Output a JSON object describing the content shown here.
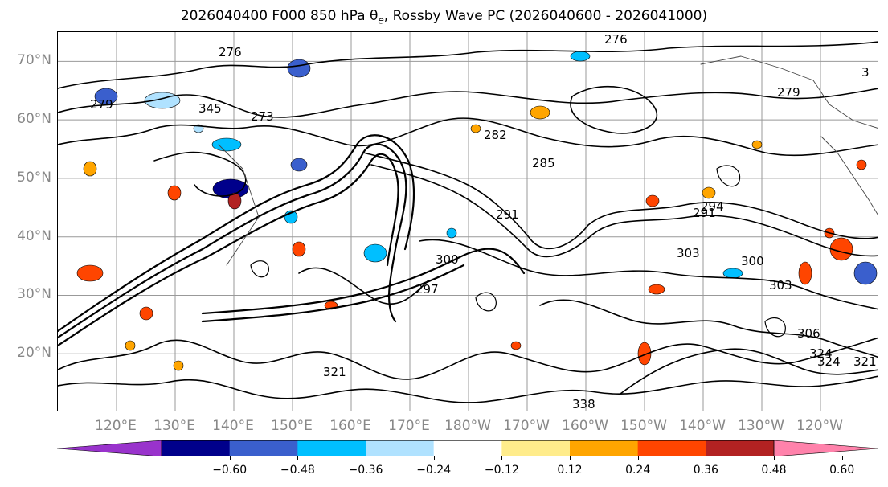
{
  "title": "2026040400 F000 850 hPa θe, Rossby Wave PC (2026040600 - 2026041000)",
  "title_parts": {
    "prefix": "2026040400 F000 850 hPa θ",
    "subscript": "e",
    "suffix": ", Rossby Wave PC (2026040600 - 2026041000)"
  },
  "map": {
    "projection": "cylindrical",
    "lon_range": [
      110,
      250
    ],
    "lat_range": [
      10,
      75
    ],
    "gridlines": true,
    "coastline_color": "#000000",
    "contour_color": "#000000"
  },
  "lat_labels": [
    "70°N",
    "60°N",
    "50°N",
    "40°N",
    "30°N",
    "20°N"
  ],
  "lat_values": [
    70,
    60,
    50,
    40,
    30,
    20
  ],
  "lon_labels": [
    "120°E",
    "130°E",
    "140°E",
    "150°E",
    "160°E",
    "170°E",
    "180°W",
    "170°W",
    "160°W",
    "150°W",
    "140°W",
    "130°W",
    "120°W"
  ],
  "lon_values": [
    120,
    130,
    140,
    150,
    160,
    170,
    180,
    190,
    200,
    210,
    220,
    230,
    240
  ],
  "contour_labels": [
    "276",
    "282",
    "285",
    "291",
    "291",
    "294",
    "297",
    "300",
    "300",
    "303",
    "303",
    "306",
    "324",
    "324",
    "321",
    "321",
    "338",
    "345",
    "273",
    "279",
    "279",
    "276",
    "3"
  ],
  "colorbar": {
    "colors": [
      "#9933cc",
      "#00008b",
      "#3a5fcd",
      "#00bfff",
      "#b0e2ff",
      "#ffffff",
      "#ffec8b",
      "#ffa500",
      "#ff4500",
      "#b22222",
      "#ff82ab"
    ],
    "tick_labels": [
      "−0.60",
      "−0.48",
      "−0.36",
      "−0.24",
      "−0.12",
      "0.12",
      "0.24",
      "0.36",
      "0.48",
      "0.60"
    ],
    "tick_values": [
      -0.6,
      -0.48,
      -0.36,
      -0.24,
      -0.12,
      0.12,
      0.24,
      0.36,
      0.48,
      0.6
    ]
  }
}
